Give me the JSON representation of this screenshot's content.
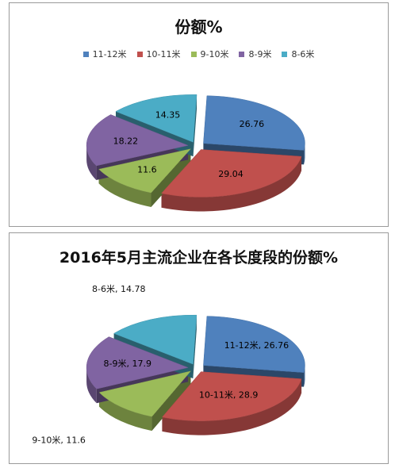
{
  "chart_data": [
    {
      "type": "pie",
      "title": "份额%",
      "legend_position": "top",
      "categories": [
        "11-12米",
        "10-11米",
        "9-10米",
        "8-9米",
        "8-6米"
      ],
      "values": [
        26.76,
        29.04,
        11.6,
        18.22,
        14.35
      ],
      "colors": [
        "#4F81BD",
        "#C0504D",
        "#9BBB59",
        "#8064A2",
        "#4BACC6"
      ],
      "data_labels": [
        "26.76",
        "29.04",
        "11.6",
        "18.22",
        "14.35"
      ]
    },
    {
      "type": "pie",
      "title": "2016年5月主流企业在各长度段的份额%",
      "legend_position": "none",
      "categories": [
        "11-12米",
        "10-11米",
        "9-10米",
        "8-9米",
        "8-6米"
      ],
      "values": [
        26.76,
        28.9,
        11.6,
        17.9,
        14.78
      ],
      "colors": [
        "#4F81BD",
        "#C0504D",
        "#9BBB59",
        "#8064A2",
        "#4BACC6"
      ],
      "data_labels": [
        "11-12米, 26.76",
        "10-11米, 28.9",
        "9-10米, 11.6",
        "8-9米, 17.9",
        "8-6米, 14.78"
      ]
    }
  ]
}
